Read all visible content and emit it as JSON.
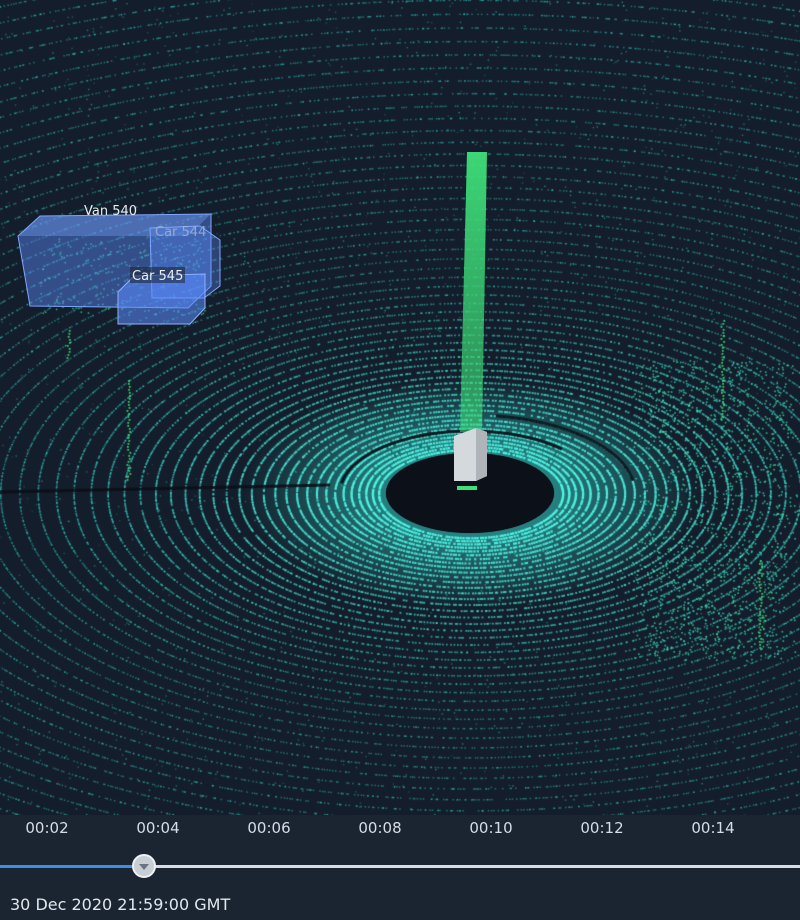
{
  "scene": {
    "ego_bar_color": "#3fe07a",
    "point_color": "#3ff0d8",
    "objects": [
      {
        "label": "Van 540",
        "class": "van",
        "color": "#5b8cff"
      },
      {
        "label": "Car 545",
        "class": "car",
        "color": "#5b8cff"
      },
      {
        "label": "Car 544",
        "class": "car",
        "color": "#5b8cff"
      }
    ]
  },
  "timeline": {
    "ticks": [
      "00:02",
      "00:04",
      "00:06",
      "00:08",
      "00:10",
      "00:12",
      "00:14"
    ],
    "progress_fraction": 0.18,
    "accent_color": "#3d8df0",
    "timestamp": "30 Dec 2020 21:59:00 GMT"
  }
}
